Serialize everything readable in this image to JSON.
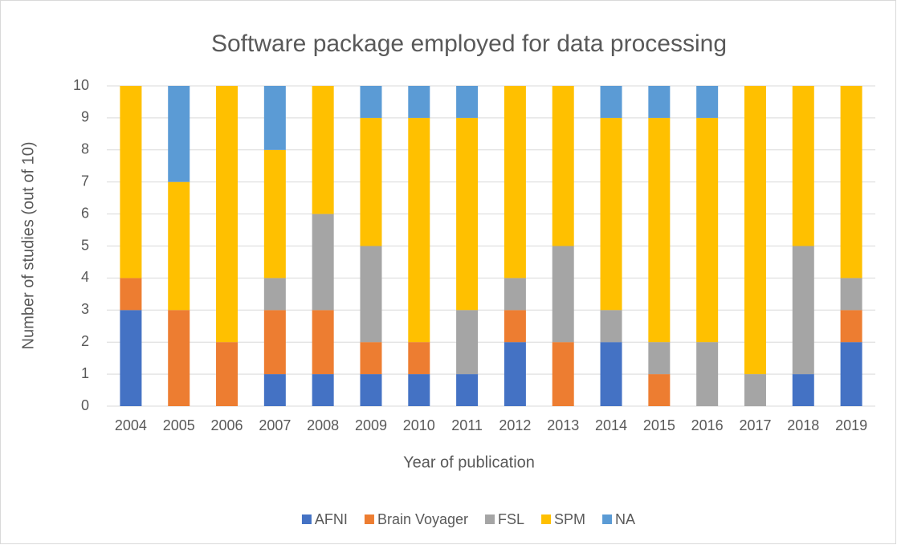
{
  "chart_data": {
    "type": "stacked_bar",
    "title": "Software package employed for data processing",
    "x_label": "Year of publication",
    "y_label": "Number of studies (out of 10)",
    "categories": [
      "2004",
      "2005",
      "2006",
      "2007",
      "2008",
      "2009",
      "2010",
      "2011",
      "2012",
      "2013",
      "2014",
      "2015",
      "2016",
      "2017",
      "2018",
      "2019"
    ],
    "series": [
      {
        "name": "AFNI",
        "color": "#4472c4",
        "values": [
          3,
          0,
          0,
          1,
          1,
          1,
          1,
          1,
          2,
          0,
          2,
          0,
          0,
          0,
          1,
          2
        ]
      },
      {
        "name": "Brain Voyager",
        "color": "#ed7d31",
        "values": [
          1,
          3,
          2,
          2,
          2,
          1,
          1,
          0,
          1,
          2,
          0,
          1,
          0,
          0,
          0,
          1
        ]
      },
      {
        "name": "FSL",
        "color": "#a5a5a5",
        "values": [
          0,
          0,
          0,
          1,
          3,
          3,
          0,
          2,
          1,
          3,
          1,
          1,
          2,
          1,
          4,
          1
        ]
      },
      {
        "name": "SPM",
        "color": "#ffc000",
        "values": [
          6,
          4,
          8,
          4,
          4,
          4,
          7,
          6,
          6,
          5,
          6,
          7,
          7,
          9,
          5,
          6
        ]
      },
      {
        "name": "NA",
        "color": "#5b9bd5",
        "values": [
          0,
          3,
          0,
          2,
          0,
          1,
          1,
          1,
          0,
          0,
          1,
          1,
          1,
          0,
          0,
          0
        ]
      }
    ],
    "ylim": [
      0,
      10
    ],
    "yticks": [
      0,
      1,
      2,
      3,
      4,
      5,
      6,
      7,
      8,
      9,
      10
    ],
    "grid": true,
    "legend": "bottom"
  }
}
